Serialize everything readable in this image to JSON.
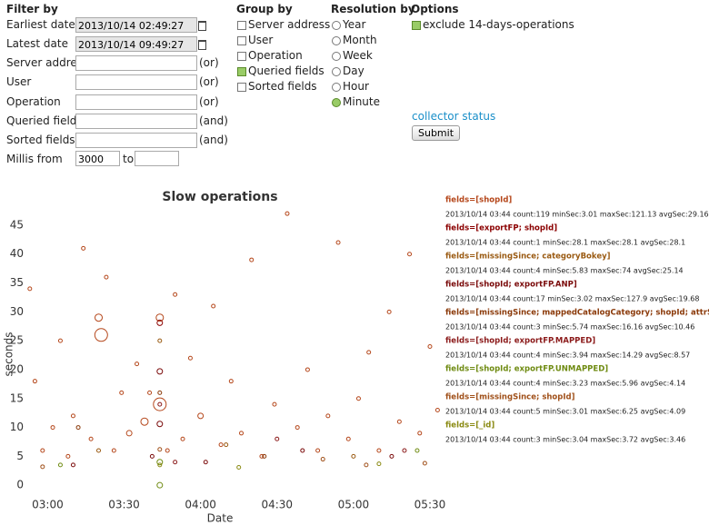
{
  "filter": {
    "title": "Filter by",
    "fields": [
      {
        "label": "Earliest date",
        "value": "2013/10/14 02:49:27",
        "readonly": true
      },
      {
        "label": "Latest date",
        "value": "2013/10/14 09:49:27",
        "readonly": true
      },
      {
        "label": "Server address",
        "note": "(or)"
      },
      {
        "label": "User",
        "note": "(or)"
      },
      {
        "label": "Operation",
        "note": "(or)"
      },
      {
        "label": "Queried fields",
        "note": "(and)"
      },
      {
        "label": "Sorted fields",
        "note": "(and)"
      }
    ],
    "millis": {
      "label": "Millis from",
      "from": "3000",
      "to": "to"
    }
  },
  "group_by": {
    "title": "Group by",
    "options": [
      {
        "label": "Server address",
        "checked": false
      },
      {
        "label": "User",
        "checked": false
      },
      {
        "label": "Operation",
        "checked": false
      },
      {
        "label": "Queried fields",
        "checked": true
      },
      {
        "label": "Sorted fields",
        "checked": false
      }
    ]
  },
  "resolution": {
    "title": "Resolution by",
    "options": [
      {
        "label": "Year",
        "checked": false
      },
      {
        "label": "Month",
        "checked": false
      },
      {
        "label": "Week",
        "checked": false
      },
      {
        "label": "Day",
        "checked": false
      },
      {
        "label": "Hour",
        "checked": false
      },
      {
        "label": "Minute",
        "checked": true
      }
    ]
  },
  "options": {
    "title": "Options",
    "items": [
      {
        "label": "exclude 14-days-operations",
        "checked": true
      }
    ],
    "link": "collector status",
    "button": "Submit"
  },
  "chart_data": {
    "type": "scatter",
    "title": "Slow operations",
    "x_label": "Date",
    "y_label": "seconds",
    "xlim": [
      "02:52",
      "05:35"
    ],
    "xticks": [
      "03:00",
      "03:30",
      "04:00",
      "04:30",
      "05:00",
      "05:30"
    ],
    "ylim": [
      -1.7,
      47.5
    ],
    "yticks": [
      0,
      5,
      10,
      15,
      20,
      25,
      30,
      35,
      40,
      45
    ],
    "grid": false,
    "series": [
      {
        "name": "fields=[shopId]",
        "detail": "2013/10/14 03:44 count:119 minSec:3.01 maxSec:121.13 avgSec:29.16",
        "color": "#b5471b",
        "x": [
          "02:53",
          "02:55",
          "02:58",
          "03:02",
          "03:05",
          "03:08",
          "03:10",
          "03:14",
          "03:17",
          "03:20",
          "03:21",
          "03:23",
          "03:26",
          "03:29",
          "03:32",
          "03:35",
          "03:38",
          "03:40",
          "03:44",
          "03:44",
          "03:47",
          "03:50",
          "03:53",
          "03:56",
          "04:00",
          "04:05",
          "04:08",
          "04:12",
          "04:16",
          "04:20",
          "04:24",
          "04:29",
          "04:34",
          "04:38",
          "04:42",
          "04:46",
          "04:50",
          "04:54",
          "04:58",
          "05:02",
          "05:06",
          "05:10",
          "05:14",
          "05:18",
          "05:22",
          "05:26",
          "05:30",
          "05:33"
        ],
        "values": [
          34,
          18,
          6,
          10,
          25,
          5,
          12,
          41,
          8,
          29,
          26,
          36,
          6,
          16,
          9,
          21,
          11,
          16,
          29,
          14,
          6,
          33,
          8,
          22,
          12,
          31,
          7,
          18,
          9,
          39,
          5,
          14,
          47,
          10,
          20,
          6,
          12,
          42,
          8,
          15,
          23,
          6,
          30,
          11,
          40,
          9,
          24,
          13
        ],
        "sizes": [
          2,
          2,
          2,
          2,
          2,
          2,
          2,
          2,
          2,
          4,
          7,
          2,
          2,
          2,
          3,
          2,
          4,
          2,
          4,
          7,
          2,
          2,
          2,
          2,
          3,
          2,
          2,
          2,
          2,
          2,
          2,
          2,
          2,
          2,
          2,
          2,
          2,
          2,
          2,
          2,
          2,
          2,
          2,
          2,
          2,
          2,
          2,
          2
        ]
      },
      {
        "name": "fields=[exportFP; shopId]",
        "detail": "2013/10/14 03:44 count:1 minSec:28.1 maxSec:28.1 avgSec:28.1",
        "color": "#8b0000",
        "x": [
          "03:44"
        ],
        "values": [
          28.1
        ],
        "sizes": [
          3
        ]
      },
      {
        "name": "fields=[missingSince; categoryBokey]",
        "detail": "2013/10/14 03:44 count:4 minSec:5.83 maxSec:74 avgSec:25.14",
        "color": "#9a5a12",
        "x": [
          "03:44",
          "03:20",
          "04:10",
          "05:00"
        ],
        "values": [
          25,
          6,
          7,
          5
        ],
        "sizes": [
          2,
          2,
          2,
          2
        ]
      },
      {
        "name": "fields=[shopId; exportFP.ANP]",
        "detail": "2013/10/14 03:44 count:17 minSec:3.02 maxSec:127.9 avgSec:19.68",
        "color": "#7a0a0a",
        "x": [
          "03:44",
          "03:44",
          "03:41",
          "04:02",
          "04:40",
          "05:15",
          "03:10"
        ],
        "values": [
          19.7,
          10.6,
          5,
          4,
          6,
          5,
          3.5
        ],
        "sizes": [
          3,
          3,
          2,
          2,
          2,
          2,
          2
        ]
      },
      {
        "name": "fields=[missingSince; mappedCatalogCategory; shopId; attrSearchtext]",
        "detail": "2013/10/14 03:44 count:3 minSec:5.74 maxSec:16.16 avgSec:10.46",
        "color": "#8b3a0a",
        "x": [
          "03:44",
          "03:12",
          "04:25"
        ],
        "values": [
          16,
          10,
          5
        ],
        "sizes": [
          2,
          2,
          2
        ]
      },
      {
        "name": "fields=[shopId; exportFP.MAPPED]",
        "detail": "2013/10/14 03:44 count:4 minSec:3.94 maxSec:14.29 avgSec:8.57",
        "color": "#8b1a1a",
        "x": [
          "03:44",
          "03:50",
          "04:30",
          "05:20"
        ],
        "values": [
          14,
          4,
          8,
          6
        ],
        "sizes": [
          2,
          2,
          2,
          2
        ]
      },
      {
        "name": "fields=[shopId; exportFP.UNMAPPED]",
        "detail": "2013/10/14 03:44 count:4 minSec:3.23 maxSec:5.96 avgSec:4.14",
        "color": "#6f8b12",
        "x": [
          "03:44",
          "03:44",
          "03:05",
          "05:25"
        ],
        "values": [
          4,
          0,
          3.5,
          6
        ],
        "sizes": [
          3,
          3,
          2,
          2
        ]
      },
      {
        "name": "fields=[missingSince; shopId]",
        "detail": "2013/10/14 03:44 count:5 minSec:3.01 maxSec:6.25 avgSec:4.09",
        "color": "#a0501a",
        "x": [
          "03:44",
          "02:58",
          "04:48",
          "05:05",
          "05:28"
        ],
        "values": [
          6.2,
          3.2,
          4.5,
          3.5,
          3.8
        ],
        "sizes": [
          2,
          2,
          2,
          2,
          2
        ]
      },
      {
        "name": "fields=[_id]",
        "detail": "2013/10/14 03:44 count:3 minSec:3.04 maxSec:3.72 avgSec:3.46",
        "color": "#8a8a12",
        "x": [
          "03:44",
          "04:15",
          "05:10"
        ],
        "values": [
          3.5,
          3.1,
          3.7
        ],
        "sizes": [
          2,
          2,
          2
        ]
      }
    ]
  }
}
